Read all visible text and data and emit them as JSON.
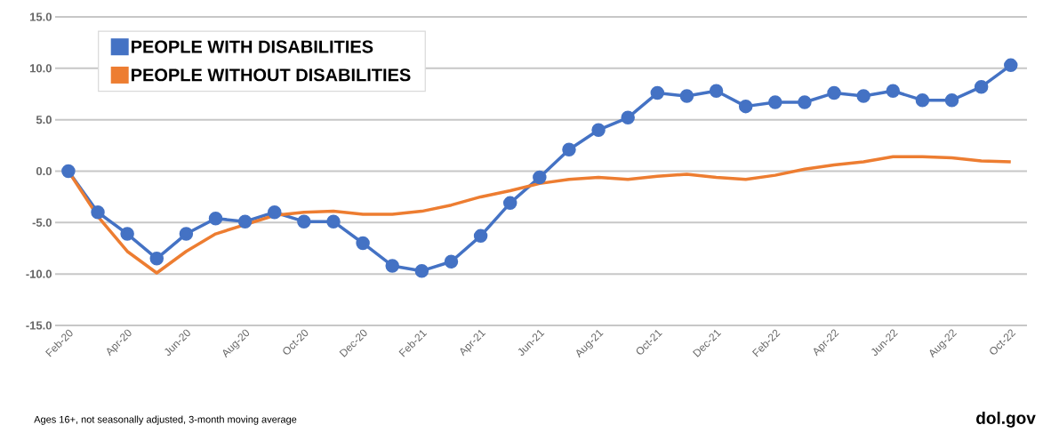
{
  "chart_data": {
    "type": "line",
    "categories": [
      "Feb-20",
      null,
      "Apr-20",
      null,
      "Jun-20",
      null,
      "Aug-20",
      null,
      "Oct-20",
      null,
      "Dec-20",
      null,
      "Feb-21",
      null,
      "Apr-21",
      null,
      "Jun-21",
      null,
      "Aug-21",
      null,
      "Oct-21",
      null,
      "Dec-21",
      null,
      "Feb-22",
      null,
      "Apr-22",
      null,
      "Jun-22",
      null,
      "Aug-22",
      null,
      "Oct-22"
    ],
    "series": [
      {
        "name": "PEOPLE WITH DISABILITIES",
        "color": "#4472c4",
        "marker": "circle",
        "values": [
          0,
          -4.0,
          -6.1,
          -8.5,
          -6.1,
          -4.6,
          -4.9,
          -4.0,
          -4.9,
          -4.9,
          -7.0,
          -9.2,
          -9.7,
          -8.8,
          -6.3,
          -3.1,
          -0.6,
          2.1,
          4.0,
          5.2,
          7.6,
          7.3,
          7.8,
          6.3,
          6.7,
          6.7,
          7.6,
          7.3,
          7.8,
          6.9,
          6.9,
          8.2,
          10.3
        ]
      },
      {
        "name": "PEOPLE WITHOUT DISABILITIES",
        "color": "#ed7d31",
        "marker": "none",
        "values": [
          0,
          -4.4,
          -7.8,
          -9.9,
          -7.8,
          -6.1,
          -5.2,
          -4.3,
          -4.0,
          -3.9,
          -4.2,
          -4.2,
          -3.9,
          -3.3,
          -2.5,
          -1.9,
          -1.2,
          -0.8,
          -0.6,
          -0.8,
          -0.5,
          -0.3,
          -0.6,
          -0.8,
          -0.4,
          0.2,
          0.6,
          0.9,
          1.4,
          1.4,
          1.3,
          1.0,
          0.9
        ]
      }
    ],
    "ylim": [
      -15,
      15
    ],
    "yticks": [
      {
        "value": -15,
        "label": "-15.0"
      },
      {
        "value": -10,
        "label": "-10.0"
      },
      {
        "value": -5,
        "label": "-5.0"
      },
      {
        "value": 0,
        "label": "0.0"
      },
      {
        "value": 5,
        "label": "5.0"
      },
      {
        "value": 10,
        "label": "10.0"
      },
      {
        "value": 15,
        "label": "15.0"
      }
    ],
    "grid": "y",
    "legend": "top left",
    "line_style": "solid",
    "annotations": [
      "Ages 16+, not seasonally adjusted, 3-month moving average",
      "dol.gov"
    ]
  }
}
